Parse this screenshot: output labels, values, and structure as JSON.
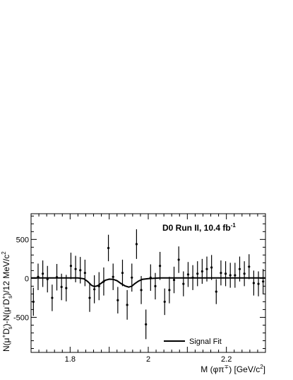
{
  "chart_data": {
    "type": "scatter",
    "title": "",
    "annotation": {
      "main": "D0 Run II, 10.4 fb",
      "superscript": "-1"
    },
    "xlabel": {
      "main": "M (φπ",
      "sup": "∓",
      "after": ") [GeV/c",
      "sup2": "2",
      "end": "]"
    },
    "ylabel": {
      "p1": "N(μ",
      "s1": "+",
      "p2": "D",
      "s2": "-",
      "sub2": "s",
      "p3": ")-N(μ",
      "s3": "-",
      "p4": "D",
      "s4": "+",
      "sub4": "s",
      "p5": ")/12 MeV/c",
      "s5": "2"
    },
    "xlim": [
      1.7,
      2.3
    ],
    "ylim": [
      -950,
      830
    ],
    "x_ticks": [
      {
        "value": 1.8,
        "label": "1.8"
      },
      {
        "value": 2.0,
        "label": "2"
      },
      {
        "value": 2.2,
        "label": "2.2"
      }
    ],
    "y_ticks": [
      {
        "value": 500,
        "label": "500"
      },
      {
        "value": 0,
        "label": "0"
      },
      {
        "value": -500,
        "label": "-500"
      }
    ],
    "legend": {
      "position": "bottom-right",
      "entries": [
        {
          "label": "Signal Fit"
        }
      ]
    },
    "grid": false,
    "series": [
      {
        "points": [
          {
            "x": 1.706,
            "y": -300,
            "err": 180
          },
          {
            "x": 1.718,
            "y": 20,
            "err": 170
          },
          {
            "x": 1.73,
            "y": 60,
            "err": 170
          },
          {
            "x": 1.742,
            "y": -10,
            "err": 170
          },
          {
            "x": 1.754,
            "y": -250,
            "err": 170
          },
          {
            "x": 1.766,
            "y": 15,
            "err": 170
          },
          {
            "x": 1.778,
            "y": -110,
            "err": 170
          },
          {
            "x": 1.79,
            "y": -125,
            "err": 170
          },
          {
            "x": 1.802,
            "y": 160,
            "err": 170
          },
          {
            "x": 1.814,
            "y": 120,
            "err": 170
          },
          {
            "x": 1.826,
            "y": 105,
            "err": 170
          },
          {
            "x": 1.838,
            "y": 70,
            "err": 170
          },
          {
            "x": 1.85,
            "y": -250,
            "err": 180
          },
          {
            "x": 1.862,
            "y": -140,
            "err": 180
          },
          {
            "x": 1.874,
            "y": -100,
            "err": 180
          },
          {
            "x": 1.886,
            "y": -40,
            "err": 180
          },
          {
            "x": 1.898,
            "y": 390,
            "err": 170
          },
          {
            "x": 1.91,
            "y": 20,
            "err": 170
          },
          {
            "x": 1.922,
            "y": -280,
            "err": 170
          },
          {
            "x": 1.934,
            "y": 70,
            "err": 170
          },
          {
            "x": 1.946,
            "y": -340,
            "err": 190
          },
          {
            "x": 1.958,
            "y": 10,
            "err": 180
          },
          {
            "x": 1.97,
            "y": 440,
            "err": 190
          },
          {
            "x": 1.982,
            "y": -150,
            "err": 180
          },
          {
            "x": 1.994,
            "y": -590,
            "err": 190
          },
          {
            "x": 2.006,
            "y": 10,
            "err": 170
          },
          {
            "x": 2.018,
            "y": -100,
            "err": 170
          },
          {
            "x": 2.03,
            "y": 160,
            "err": 180
          },
          {
            "x": 2.042,
            "y": -300,
            "err": 170
          },
          {
            "x": 2.054,
            "y": -150,
            "err": 170
          },
          {
            "x": 2.066,
            "y": -20,
            "err": 170
          },
          {
            "x": 2.078,
            "y": 240,
            "err": 170
          },
          {
            "x": 2.09,
            "y": -70,
            "err": 160
          },
          {
            "x": 2.102,
            "y": 50,
            "err": 160
          },
          {
            "x": 2.114,
            "y": 10,
            "err": 160
          },
          {
            "x": 2.126,
            "y": 60,
            "err": 160
          },
          {
            "x": 2.138,
            "y": 90,
            "err": 160
          },
          {
            "x": 2.15,
            "y": 120,
            "err": 160
          },
          {
            "x": 2.162,
            "y": 140,
            "err": 160
          },
          {
            "x": 2.174,
            "y": -170,
            "err": 160
          },
          {
            "x": 2.186,
            "y": 70,
            "err": 160
          },
          {
            "x": 2.198,
            "y": 60,
            "err": 160
          },
          {
            "x": 2.21,
            "y": 40,
            "err": 160
          },
          {
            "x": 2.222,
            "y": 40,
            "err": 160
          },
          {
            "x": 2.234,
            "y": 120,
            "err": 160
          },
          {
            "x": 2.246,
            "y": 60,
            "err": 160
          },
          {
            "x": 2.258,
            "y": 150,
            "err": 160
          },
          {
            "x": 2.27,
            "y": -60,
            "err": 160
          },
          {
            "x": 2.282,
            "y": -70,
            "err": 160
          },
          {
            "x": 2.294,
            "y": -40,
            "err": 160
          }
        ]
      }
    ],
    "fit": {
      "type": "line",
      "points": [
        [
          1.7,
          5
        ],
        [
          1.82,
          5
        ],
        [
          1.835,
          -5
        ],
        [
          1.845,
          -40
        ],
        [
          1.855,
          -90
        ],
        [
          1.862,
          -105
        ],
        [
          1.87,
          -95
        ],
        [
          1.88,
          -60
        ],
        [
          1.89,
          -25
        ],
        [
          1.9,
          -10
        ],
        [
          1.91,
          -12
        ],
        [
          1.92,
          -30
        ],
        [
          1.93,
          -65
        ],
        [
          1.94,
          -95
        ],
        [
          1.95,
          -112
        ],
        [
          1.958,
          -100
        ],
        [
          1.965,
          -70
        ],
        [
          1.975,
          -35
        ],
        [
          1.985,
          -12
        ],
        [
          2.0,
          -3
        ],
        [
          2.03,
          5
        ],
        [
          2.3,
          5
        ]
      ]
    }
  }
}
